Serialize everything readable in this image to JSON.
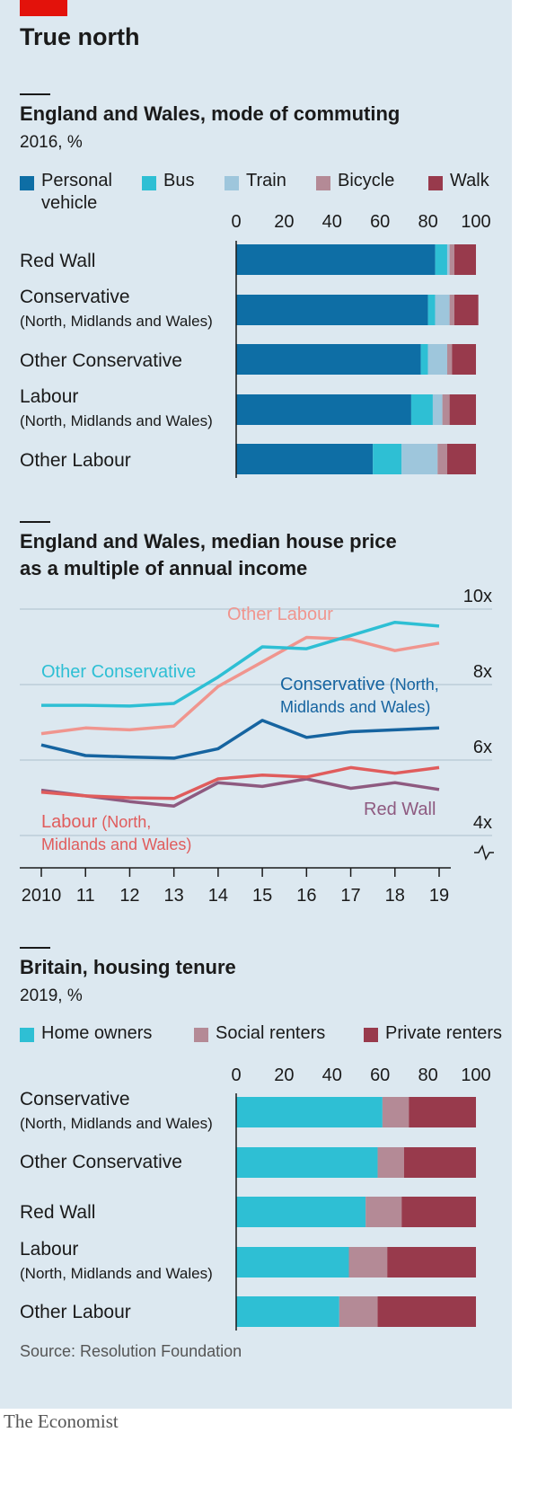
{
  "header": {
    "title": "True north"
  },
  "colors": {
    "personal_vehicle": "#0e6ea5",
    "bus": "#2ebfd4",
    "train": "#9ec6dc",
    "bicycle": "#b48a96",
    "walk": "#983a4c",
    "other_labour": "#f0958e",
    "other_conservative": "#2ebfd4",
    "conservative_nmw": "#1664a0",
    "labour_nmw": "#e05c5c",
    "red_wall": "#8e5a80"
  },
  "chart_data": [
    {
      "type": "bar",
      "stacked": true,
      "orientation": "horizontal",
      "title": "England and Wales, mode of commuting",
      "subtitle": "2016, %",
      "xlim": [
        0,
        100
      ],
      "xticks": [
        "0",
        "20",
        "40",
        "60",
        "80",
        "100"
      ],
      "categories": [
        {
          "label": "Red Wall",
          "sublabel": ""
        },
        {
          "label": "Conservative",
          "sublabel": "(North, Midlands and Wales)"
        },
        {
          "label": "Other Conservative",
          "sublabel": ""
        },
        {
          "label": "Labour",
          "sublabel": "(North, Midlands and Wales)"
        },
        {
          "label": "Other Labour",
          "sublabel": ""
        }
      ],
      "series": [
        {
          "name": "Personal vehicle",
          "name_lines": [
            "Personal",
            "vehicle"
          ],
          "values": [
            83,
            80,
            77,
            73,
            57
          ]
        },
        {
          "name": "Bus",
          "values": [
            5,
            3,
            3,
            9,
            12
          ]
        },
        {
          "name": "Train",
          "values": [
            1,
            6,
            8,
            4,
            15
          ]
        },
        {
          "name": "Bicycle",
          "values": [
            2,
            2,
            2,
            3,
            4
          ]
        },
        {
          "name": "Walk",
          "values": [
            9,
            10,
            10,
            11,
            12
          ]
        }
      ]
    },
    {
      "type": "line",
      "title_lines": [
        "England and Wales, median house price",
        "as a multiple of annual income"
      ],
      "ylim": [
        4,
        10
      ],
      "yticks": [
        "4x",
        "6x",
        "8x",
        "10x"
      ],
      "x": [
        2010,
        2011,
        2012,
        2013,
        2014,
        2015,
        2016,
        2017,
        2018,
        2019
      ],
      "xtick_labels": [
        "2010",
        "11",
        "12",
        "13",
        "14",
        "15",
        "16",
        "17",
        "18",
        "19"
      ],
      "series": [
        {
          "name": "Other Labour",
          "values": [
            6.7,
            6.85,
            6.8,
            6.9,
            7.95,
            8.6,
            9.25,
            9.2,
            8.9,
            9.1
          ]
        },
        {
          "name": "Other Conservative",
          "values": [
            7.45,
            7.45,
            7.43,
            7.5,
            8.2,
            9.0,
            8.95,
            9.3,
            9.65,
            9.55
          ]
        },
        {
          "name": "Conservative (North, Midlands and Wales)",
          "label_main": "Conservative",
          "label_rest": "(North,",
          "label_line2": "Midlands and Wales)",
          "values": [
            6.4,
            6.12,
            6.08,
            6.05,
            6.3,
            7.05,
            6.6,
            6.75,
            6.8,
            6.85
          ]
        },
        {
          "name": "Labour (North, Midlands and Wales)",
          "label_main": "Labour",
          "label_rest": "(North,",
          "label_line2": "Midlands and Wales)",
          "values": [
            5.15,
            5.05,
            5.0,
            4.98,
            5.5,
            5.6,
            5.55,
            5.8,
            5.65,
            5.8
          ]
        },
        {
          "name": "Red Wall",
          "values": [
            5.2,
            5.05,
            4.9,
            4.78,
            5.4,
            5.3,
            5.5,
            5.25,
            5.4,
            5.22
          ]
        }
      ]
    },
    {
      "type": "bar",
      "stacked": true,
      "orientation": "horizontal",
      "title": "Britain, housing tenure",
      "subtitle": "2019, %",
      "xlim": [
        0,
        100
      ],
      "xticks": [
        "0",
        "20",
        "40",
        "60",
        "80",
        "100"
      ],
      "categories": [
        {
          "label": "Conservative",
          "sublabel": "(North, Midlands and Wales)"
        },
        {
          "label": "Other Conservative",
          "sublabel": ""
        },
        {
          "label": "Red Wall",
          "sublabel": ""
        },
        {
          "label": "Labour",
          "sublabel": "(North, Midlands and Wales)"
        },
        {
          "label": "Other Labour",
          "sublabel": ""
        }
      ],
      "series": [
        {
          "name": "Home owners",
          "values": [
            61,
            59,
            54,
            47,
            43
          ]
        },
        {
          "name": "Social renters",
          "values": [
            11,
            11,
            15,
            16,
            16
          ]
        },
        {
          "name": "Private renters",
          "values": [
            28,
            30,
            31,
            37,
            41
          ]
        }
      ]
    }
  ],
  "source": "Source: Resolution Foundation",
  "brand": "The Economist"
}
